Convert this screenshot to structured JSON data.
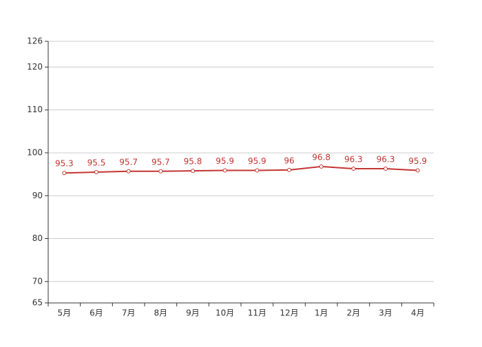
{
  "chart_data": {
    "type": "line",
    "categories": [
      "5月",
      "6月",
      "7月",
      "8月",
      "9月",
      "10月",
      "11月",
      "12月",
      "1月",
      "2月",
      "3月",
      "4月"
    ],
    "series": [
      {
        "color": "#c23531",
        "values": [
          95.3,
          95.5,
          95.7,
          95.7,
          95.8,
          95.9,
          95.9,
          96,
          96.8,
          96.3,
          96.3,
          95.9
        ]
      }
    ],
    "ylim": [
      65,
      126
    ],
    "yticks": [
      65,
      70,
      80,
      90,
      100,
      110,
      120,
      126
    ],
    "grid": true,
    "data_labels": true
  }
}
